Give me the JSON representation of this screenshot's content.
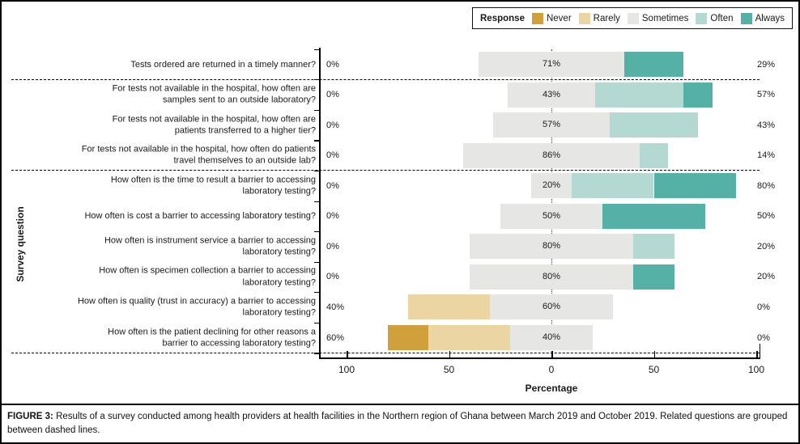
{
  "legend": {
    "title": "Response",
    "items": [
      {
        "label": "Never",
        "color": "#cfa03c"
      },
      {
        "label": "Rarely",
        "color": "#ebd5a3"
      },
      {
        "label": "Sometimes",
        "color": "#e6e7e5"
      },
      {
        "label": "Often",
        "color": "#b4d9d2"
      },
      {
        "label": "Always",
        "color": "#55b1a6"
      }
    ]
  },
  "chart_data": {
    "type": "bar",
    "variant": "diverging-stacked-likert",
    "xlabel": "Percentage",
    "ylabel": "Survey question",
    "x_ticks": {
      "values": [
        -100,
        -50,
        0,
        50,
        100
      ],
      "labels": [
        "100",
        "50",
        "0",
        "50",
        "100"
      ]
    },
    "legend_position": "top-right",
    "categories": [
      {
        "lines": [
          "Tests ordered are returned in a timely manner?"
        ]
      },
      {
        "lines": [
          "For tests not available in the hospital, how often are",
          "samples sent to an outside laboratory?"
        ]
      },
      {
        "lines": [
          "For tests not available in the hospital, how often are",
          "patients transferred to a higher tier?"
        ]
      },
      {
        "lines": [
          "For tests not available in the hospital, how often do patients",
          "travel themselves to an outside lab?"
        ]
      },
      {
        "lines": [
          "How often is the time to result a barrier to accessing",
          "laboratory testing?"
        ]
      },
      {
        "lines": [
          "How often is cost a barrier to accessing laboratory testing?"
        ]
      },
      {
        "lines": [
          "How often is instrument service a barrier to accessing",
          "laboratory testing?"
        ]
      },
      {
        "lines": [
          "How often is specimen collection a barrier to accessing",
          "laboratory testing?"
        ]
      },
      {
        "lines": [
          "How often is quality (trust in accuracy) a barrier to accessing",
          "laboratory testing?"
        ]
      },
      {
        "lines": [
          "How often is the patient declining for other reasons a",
          "barrier to accessing laboratory testing?"
        ]
      }
    ],
    "series": [
      {
        "name": "Never",
        "color": "#cfa03c",
        "values": [
          0,
          0,
          0,
          0,
          0,
          0,
          0,
          0,
          0,
          20
        ]
      },
      {
        "name": "Rarely",
        "color": "#ebd5a3",
        "values": [
          0,
          0,
          0,
          0,
          0,
          0,
          0,
          0,
          40,
          40
        ]
      },
      {
        "name": "Sometimes",
        "color": "#e6e7e5",
        "values": [
          71,
          43,
          57,
          86,
          20,
          50,
          80,
          80,
          60,
          40
        ]
      },
      {
        "name": "Often",
        "color": "#b4d9d2",
        "values": [
          0,
          43,
          43,
          14,
          40,
          0,
          20,
          0,
          0,
          0
        ]
      },
      {
        "name": "Always",
        "color": "#55b1a6",
        "values": [
          29,
          14,
          0,
          0,
          40,
          50,
          0,
          20,
          0,
          0
        ]
      }
    ],
    "left_total_labels": [
      "0%",
      "0%",
      "0%",
      "0%",
      "0%",
      "0%",
      "0%",
      "0%",
      "40%",
      "60%"
    ],
    "center_labels": [
      "71%",
      "43%",
      "57%",
      "86%",
      "20%",
      "50%",
      "80%",
      "80%",
      "60%",
      "40%"
    ],
    "right_total_labels": [
      "29%",
      "57%",
      "43%",
      "14%",
      "80%",
      "50%",
      "20%",
      "20%",
      "0%",
      "0%"
    ],
    "group_separators_after_rows": [
      0,
      3,
      9
    ],
    "neutral_series": "Sometimes",
    "grid": false
  },
  "caption": {
    "label": "FIGURE 3:",
    "text": " Results of a survey conducted among health providers at health facilities in the Northern region of Ghana between March 2019 and October 2019. Related questions are grouped between dashed lines."
  }
}
